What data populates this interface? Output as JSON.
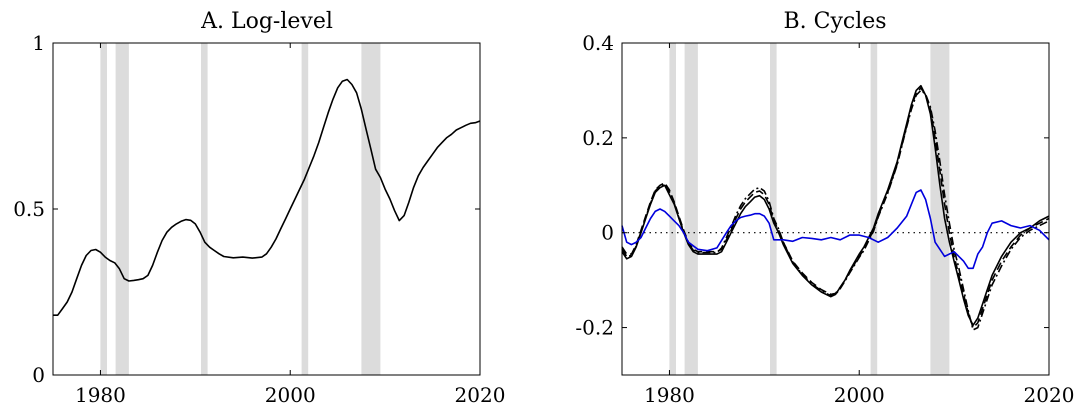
{
  "chart_data": [
    {
      "type": "line",
      "title": "A. Log-level",
      "xlabel": "",
      "ylabel": "",
      "xlim": [
        1975,
        2020
      ],
      "ylim": [
        0,
        1
      ],
      "xticks": [
        1980,
        2000,
        2020
      ],
      "xtick_labels": [
        "1980",
        "2000",
        "2020"
      ],
      "yticks": [
        0,
        0.5,
        1
      ],
      "ytick_labels": [
        "0",
        "0.5",
        "1"
      ],
      "grid": false,
      "shaded_periods": [
        [
          1980.0,
          1980.7
        ],
        [
          1981.6,
          1983.0
        ],
        [
          1990.6,
          1991.3
        ],
        [
          2001.2,
          2001.9
        ],
        [
          2007.5,
          2009.5
        ]
      ],
      "series": [
        {
          "color": "#000000",
          "style": "solid",
          "x": [
            1975.0,
            1975.5,
            1976.0,
            1976.5,
            1977.0,
            1977.5,
            1978.0,
            1978.5,
            1979.0,
            1979.5,
            1980.0,
            1980.5,
            1981.0,
            1981.5,
            1982.0,
            1982.5,
            1983.0,
            1983.5,
            1984.0,
            1984.5,
            1985.0,
            1985.5,
            1986.0,
            1986.5,
            1987.0,
            1987.5,
            1988.0,
            1988.5,
            1989.0,
            1989.5,
            1990.0,
            1990.5,
            1991.0,
            1991.5,
            1992.0,
            1992.5,
            1993.0,
            1994.0,
            1995.0,
            1996.0,
            1997.0,
            1997.5,
            1998.0,
            1998.5,
            1999.0,
            1999.5,
            2000.0,
            2000.5,
            2001.0,
            2001.5,
            2002.0,
            2002.5,
            2003.0,
            2003.5,
            2004.0,
            2004.5,
            2005.0,
            2005.5,
            2006.0,
            2006.5,
            2007.0,
            2007.5,
            2008.0,
            2008.5,
            2009.0,
            2009.5,
            2010.0,
            2010.5,
            2011.0,
            2011.5,
            2012.0,
            2012.5,
            2013.0,
            2013.5,
            2014.0,
            2014.5,
            2015.0,
            2015.5,
            2016.0,
            2016.5,
            2017.0,
            2017.5,
            2018.0,
            2018.5,
            2019.0,
            2019.5,
            2020.0
          ],
          "y": [
            0.18,
            0.18,
            0.2,
            0.22,
            0.25,
            0.29,
            0.33,
            0.36,
            0.375,
            0.378,
            0.37,
            0.355,
            0.345,
            0.338,
            0.32,
            0.29,
            0.283,
            0.285,
            0.287,
            0.29,
            0.3,
            0.33,
            0.37,
            0.405,
            0.43,
            0.445,
            0.455,
            0.463,
            0.468,
            0.466,
            0.455,
            0.43,
            0.4,
            0.385,
            0.375,
            0.365,
            0.357,
            0.353,
            0.355,
            0.352,
            0.355,
            0.365,
            0.385,
            0.41,
            0.44,
            0.47,
            0.5,
            0.53,
            0.56,
            0.59,
            0.625,
            0.66,
            0.7,
            0.745,
            0.79,
            0.83,
            0.865,
            0.885,
            0.89,
            0.875,
            0.85,
            0.8,
            0.74,
            0.68,
            0.62,
            0.595,
            0.56,
            0.53,
            0.495,
            0.465,
            0.48,
            0.52,
            0.565,
            0.6,
            0.625,
            0.645,
            0.665,
            0.685,
            0.7,
            0.715,
            0.725,
            0.738,
            0.745,
            0.752,
            0.758,
            0.76,
            0.765
          ]
        }
      ]
    },
    {
      "type": "line",
      "title": "B. Cycles",
      "xlabel": "",
      "ylabel": "",
      "xlim": [
        1975,
        2020
      ],
      "ylim": [
        -0.3,
        0.4
      ],
      "xticks": [
        1980,
        2000,
        2020
      ],
      "xtick_labels": [
        "1980",
        "2000",
        "2020"
      ],
      "yticks": [
        -0.2,
        0,
        0.2,
        0.4
      ],
      "ytick_labels": [
        "-0.2",
        "0",
        "0.2",
        "0.4"
      ],
      "grid": false,
      "zero_line": "dotted",
      "shaded_periods": [
        [
          1980.0,
          1980.7
        ],
        [
          1981.6,
          1983.0
        ],
        [
          1990.6,
          1991.3
        ],
        [
          2001.2,
          2001.9
        ],
        [
          2007.5,
          2009.5
        ]
      ],
      "series": [
        {
          "color": "#000000",
          "style": "solid",
          "x": [
            1975.0,
            1975.5,
            1976.0,
            1976.5,
            1977.0,
            1977.5,
            1978.0,
            1978.5,
            1979.0,
            1979.5,
            1980.0,
            1980.5,
            1981.0,
            1981.5,
            1982.0,
            1982.5,
            1983.0,
            1984.0,
            1985.0,
            1985.5,
            1986.0,
            1986.5,
            1987.0,
            1987.5,
            1988.0,
            1988.5,
            1989.0,
            1989.5,
            1990.0,
            1990.5,
            1991.0,
            1991.5,
            1992.0,
            1992.5,
            1993.0,
            1994.0,
            1995.0,
            1996.0,
            1997.0,
            1997.5,
            1998.0,
            1998.5,
            1999.0,
            2000.0,
            2000.5,
            2001.0,
            2001.5,
            2002.0,
            2003.0,
            2004.0,
            2004.5,
            2005.0,
            2005.5,
            2006.0,
            2006.5,
            2007.0,
            2007.5,
            2008.0,
            2008.5,
            2009.0,
            2009.5,
            2010.0,
            2010.5,
            2011.0,
            2011.5,
            2012.0,
            2012.5,
            2013.0,
            2013.5,
            2014.0,
            2015.0,
            2016.0,
            2017.0,
            2018.0,
            2019.0,
            2020.0
          ],
          "y": [
            -0.04,
            -0.055,
            -0.05,
            -0.03,
            0.0,
            0.03,
            0.06,
            0.085,
            0.095,
            0.1,
            0.08,
            0.06,
            0.03,
            0.0,
            -0.025,
            -0.04,
            -0.045,
            -0.045,
            -0.045,
            -0.04,
            -0.02,
            0.0,
            0.02,
            0.04,
            0.055,
            0.065,
            0.075,
            0.078,
            0.07,
            0.05,
            0.02,
            0.0,
            -0.025,
            -0.045,
            -0.065,
            -0.09,
            -0.11,
            -0.125,
            -0.135,
            -0.13,
            -0.115,
            -0.1,
            -0.08,
            -0.045,
            -0.03,
            -0.01,
            0.01,
            0.04,
            0.09,
            0.15,
            0.19,
            0.23,
            0.27,
            0.3,
            0.31,
            0.29,
            0.25,
            0.18,
            0.1,
            0.03,
            -0.02,
            -0.06,
            -0.1,
            -0.14,
            -0.175,
            -0.195,
            -0.18,
            -0.15,
            -0.12,
            -0.09,
            -0.05,
            -0.02,
            0.0,
            0.01,
            0.025,
            0.035
          ]
        },
        {
          "color": "#000000",
          "style": "dashed",
          "x": [
            1975.0,
            1975.5,
            1976.0,
            1976.5,
            1977.0,
            1977.5,
            1978.0,
            1978.5,
            1979.0,
            1979.5,
            1980.0,
            1980.5,
            1981.0,
            1981.5,
            1982.0,
            1982.5,
            1983.0,
            1984.0,
            1985.0,
            1985.5,
            1986.0,
            1986.5,
            1987.0,
            1987.5,
            1988.0,
            1988.5,
            1989.0,
            1989.5,
            1990.0,
            1990.5,
            1991.0,
            1991.5,
            1992.0,
            1992.5,
            1993.0,
            1994.0,
            1995.0,
            1996.0,
            1997.0,
            1997.5,
            1998.0,
            1998.5,
            1999.0,
            2000.0,
            2000.5,
            2001.0,
            2001.5,
            2002.0,
            2003.0,
            2004.0,
            2004.5,
            2005.0,
            2005.5,
            2006.0,
            2006.5,
            2007.0,
            2007.5,
            2008.0,
            2008.5,
            2009.0,
            2009.5,
            2010.0,
            2010.5,
            2011.0,
            2011.5,
            2012.0,
            2012.5,
            2013.0,
            2013.5,
            2014.0,
            2015.0,
            2016.0,
            2017.0,
            2018.0,
            2019.0,
            2020.0
          ],
          "y": [
            -0.03,
            -0.045,
            -0.045,
            -0.025,
            0.005,
            0.035,
            0.065,
            0.09,
            0.1,
            0.105,
            0.09,
            0.065,
            0.035,
            0.005,
            -0.02,
            -0.035,
            -0.04,
            -0.04,
            -0.04,
            -0.035,
            -0.015,
            0.005,
            0.03,
            0.05,
            0.065,
            0.075,
            0.085,
            0.088,
            0.08,
            0.06,
            0.025,
            0.005,
            -0.02,
            -0.04,
            -0.06,
            -0.085,
            -0.105,
            -0.12,
            -0.13,
            -0.128,
            -0.115,
            -0.1,
            -0.082,
            -0.05,
            -0.035,
            -0.015,
            0.005,
            0.035,
            0.085,
            0.145,
            0.185,
            0.225,
            0.265,
            0.295,
            0.305,
            0.29,
            0.26,
            0.2,
            0.13,
            0.06,
            0.0,
            -0.05,
            -0.09,
            -0.13,
            -0.17,
            -0.2,
            -0.19,
            -0.16,
            -0.13,
            -0.1,
            -0.06,
            -0.03,
            -0.005,
            0.01,
            0.02,
            0.03
          ]
        },
        {
          "color": "#000000",
          "style": "dashdot",
          "x": [
            1975.0,
            1975.5,
            1976.0,
            1976.5,
            1977.0,
            1977.5,
            1978.0,
            1978.5,
            1979.0,
            1979.5,
            1980.0,
            1980.5,
            1981.0,
            1981.5,
            1982.0,
            1982.5,
            1983.0,
            1984.0,
            1985.0,
            1985.5,
            1986.0,
            1986.5,
            1987.0,
            1987.5,
            1988.0,
            1988.5,
            1989.0,
            1989.5,
            1990.0,
            1990.5,
            1991.0,
            1991.5,
            1992.0,
            1992.5,
            1993.0,
            1994.0,
            1995.0,
            1996.0,
            1997.0,
            1997.5,
            1998.0,
            1998.5,
            1999.0,
            2000.0,
            2000.5,
            2001.0,
            2001.5,
            2002.0,
            2003.0,
            2004.0,
            2004.5,
            2005.0,
            2005.5,
            2006.0,
            2006.5,
            2007.0,
            2007.5,
            2008.0,
            2008.5,
            2009.0,
            2009.5,
            2010.0,
            2010.5,
            2011.0,
            2011.5,
            2012.0,
            2012.5,
            2013.0,
            2013.5,
            2014.0,
            2015.0,
            2016.0,
            2017.0,
            2018.0,
            2019.0,
            2020.0
          ],
          "y": [
            -0.035,
            -0.05,
            -0.048,
            -0.028,
            0.002,
            0.032,
            0.062,
            0.088,
            0.098,
            0.102,
            0.085,
            0.062,
            0.032,
            0.002,
            -0.022,
            -0.037,
            -0.042,
            -0.042,
            -0.042,
            -0.032,
            -0.01,
            0.012,
            0.037,
            0.057,
            0.072,
            0.082,
            0.092,
            0.095,
            0.088,
            0.066,
            0.03,
            0.008,
            -0.02,
            -0.042,
            -0.062,
            -0.088,
            -0.108,
            -0.122,
            -0.133,
            -0.13,
            -0.118,
            -0.102,
            -0.085,
            -0.052,
            -0.037,
            -0.017,
            0.003,
            0.033,
            0.083,
            0.143,
            0.183,
            0.223,
            0.26,
            0.29,
            0.3,
            0.292,
            0.265,
            0.215,
            0.15,
            0.08,
            0.02,
            -0.035,
            -0.075,
            -0.12,
            -0.165,
            -0.205,
            -0.2,
            -0.17,
            -0.14,
            -0.11,
            -0.07,
            -0.035,
            -0.01,
            0.005,
            0.015,
            0.025
          ]
        },
        {
          "color": "#0000dd",
          "style": "solid",
          "x": [
            1975.0,
            1975.5,
            1976.0,
            1976.5,
            1977.0,
            1977.5,
            1978.0,
            1978.5,
            1979.0,
            1979.5,
            1980.0,
            1980.5,
            1981.0,
            1981.5,
            1982.0,
            1983.0,
            1984.0,
            1985.0,
            1986.0,
            1986.5,
            1987.0,
            1987.5,
            1988.0,
            1988.5,
            1989.0,
            1989.5,
            1990.0,
            1990.5,
            1991.0,
            1992.0,
            1993.0,
            1994.0,
            1995.0,
            1996.0,
            1997.0,
            1998.0,
            1999.0,
            2000.0,
            2001.0,
            2002.0,
            2003.0,
            2004.0,
            2005.0,
            2005.5,
            2006.0,
            2006.5,
            2007.0,
            2007.5,
            2008.0,
            2009.0,
            2010.0,
            2011.0,
            2011.5,
            2012.0,
            2012.5,
            2013.0,
            2013.5,
            2014.0,
            2015.0,
            2016.0,
            2017.0,
            2018.0,
            2019.0,
            2020.0
          ],
          "y": [
            0.015,
            -0.02,
            -0.025,
            -0.02,
            -0.01,
            0.01,
            0.03,
            0.045,
            0.05,
            0.045,
            0.035,
            0.025,
            0.015,
            0.0,
            -0.02,
            -0.035,
            -0.038,
            -0.032,
            0.0,
            0.015,
            0.025,
            0.032,
            0.035,
            0.037,
            0.04,
            0.04,
            0.035,
            0.02,
            -0.015,
            -0.015,
            -0.018,
            -0.01,
            -0.012,
            -0.015,
            -0.01,
            -0.015,
            -0.005,
            -0.005,
            -0.01,
            -0.02,
            -0.01,
            0.01,
            0.035,
            0.06,
            0.085,
            0.09,
            0.07,
            0.03,
            -0.02,
            -0.05,
            -0.04,
            -0.06,
            -0.075,
            -0.075,
            -0.045,
            -0.03,
            0.0,
            0.02,
            0.025,
            0.015,
            0.01,
            0.015,
            0.005,
            -0.015
          ]
        }
      ]
    }
  ]
}
